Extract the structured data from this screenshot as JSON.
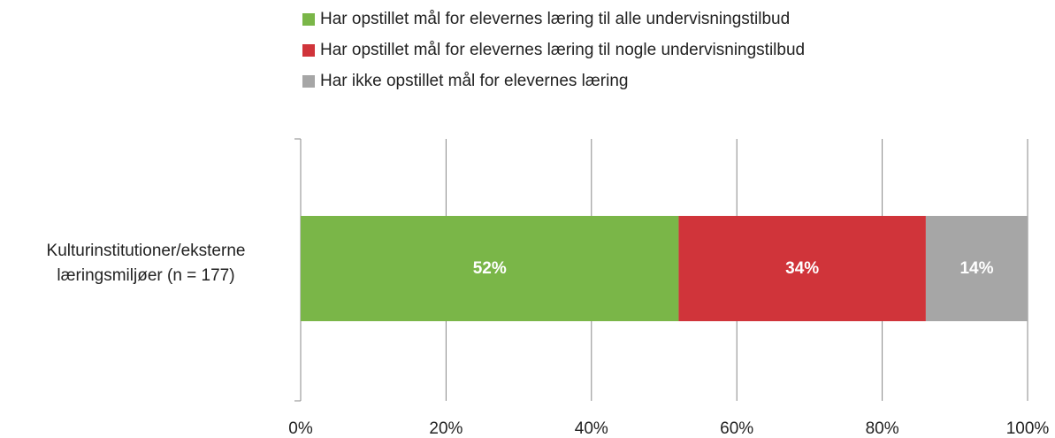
{
  "chart_data": {
    "type": "bar",
    "orientation": "horizontal",
    "stacked": true,
    "categories": [
      "Kulturinstitutioner/eksterne læringsmiljøer (n = 177)"
    ],
    "series": [
      {
        "name": "Har opstillet mål for elevernes læring til alle undervisningstilbud",
        "color": "#7ab648",
        "values": [
          52
        ],
        "value_labels": [
          "52%"
        ]
      },
      {
        "name": "Har opstillet mål for elevernes læring til nogle undervisningstilbud",
        "color": "#d0343a",
        "values": [
          34
        ],
        "value_labels": [
          "34%"
        ]
      },
      {
        "name": "Har ikke opstillet mål for elevernes læring",
        "color": "#a6a6a6",
        "values": [
          14
        ],
        "value_labels": [
          "14%"
        ]
      }
    ],
    "xlim": [
      0,
      100
    ],
    "xticks": [
      {
        "value": 0,
        "label": "0%"
      },
      {
        "value": 20,
        "label": "20%"
      },
      {
        "value": 40,
        "label": "40%"
      },
      {
        "value": 60,
        "label": "60%"
      },
      {
        "value": 80,
        "label": "80%"
      },
      {
        "value": 100,
        "label": "100%"
      }
    ],
    "grid": true,
    "legend": "top"
  }
}
